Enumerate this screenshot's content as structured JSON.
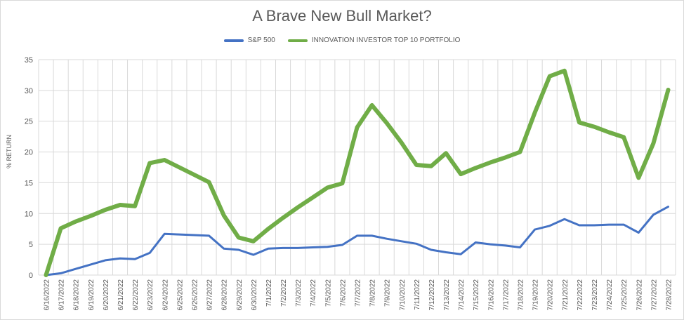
{
  "chart_data": {
    "type": "line",
    "title": "A Brave New Bull Market?",
    "xlabel": "",
    "ylabel": "% RETURN",
    "ylim": [
      0,
      35
    ],
    "yticks": [
      0,
      5,
      10,
      15,
      20,
      25,
      30,
      35
    ],
    "grid": true,
    "legend_position": "top",
    "categories": [
      "6/16/2022",
      "6/17/2022",
      "6/18/2022",
      "6/19/2022",
      "6/20/2022",
      "6/21/2022",
      "6/22/2022",
      "6/23/2022",
      "6/24/2022",
      "6/25/2022",
      "6/26/2022",
      "6/27/2022",
      "6/28/2022",
      "6/29/2022",
      "6/30/2022",
      "7/1/2022",
      "7/2/2022",
      "7/3/2022",
      "7/4/2022",
      "7/5/2022",
      "7/6/2022",
      "7/7/2022",
      "7/8/2022",
      "7/9/2022",
      "7/10/2022",
      "7/11/2022",
      "7/12/2022",
      "7/13/2022",
      "7/14/2022",
      "7/15/2022",
      "7/16/2022",
      "7/17/2022",
      "7/18/2022",
      "7/19/2022",
      "7/20/2022",
      "7/21/2022",
      "7/22/2022",
      "7/23/2022",
      "7/24/2022",
      "7/25/2022",
      "7/26/2022",
      "7/27/2022",
      "7/28/2022"
    ],
    "series": [
      {
        "name": "S&P 500",
        "color": "#4472c4",
        "values": [
          0,
          0.3,
          1.0,
          1.7,
          2.4,
          2.7,
          2.6,
          3.6,
          6.7,
          6.6,
          6.5,
          6.4,
          4.3,
          4.1,
          3.3,
          4.3,
          4.4,
          4.4,
          4.5,
          4.6,
          4.9,
          6.4,
          6.4,
          5.9,
          5.5,
          5.1,
          4.1,
          3.7,
          3.4,
          5.3,
          5.0,
          4.8,
          4.5,
          7.4,
          8.0,
          9.1,
          8.1,
          8.1,
          8.2,
          8.2,
          6.9,
          9.8,
          11.1
        ]
      },
      {
        "name": "INNOVATION INVESTOR TOP 10 PORTFOLIO",
        "color": "#70ad47",
        "values": [
          0,
          7.6,
          8.7,
          9.6,
          10.6,
          11.4,
          11.2,
          18.2,
          18.7,
          17.5,
          16.3,
          15.1,
          9.7,
          6.1,
          5.5,
          7.5,
          9.3,
          11.0,
          12.6,
          14.2,
          14.9,
          24.0,
          27.6,
          24.7,
          21.5,
          17.9,
          17.7,
          19.8,
          16.4,
          17.4,
          18.3,
          19.1,
          20.0,
          26.4,
          32.3,
          33.2,
          24.8,
          24.1,
          23.2,
          22.4,
          15.8,
          21.4,
          30.1
        ]
      }
    ]
  }
}
